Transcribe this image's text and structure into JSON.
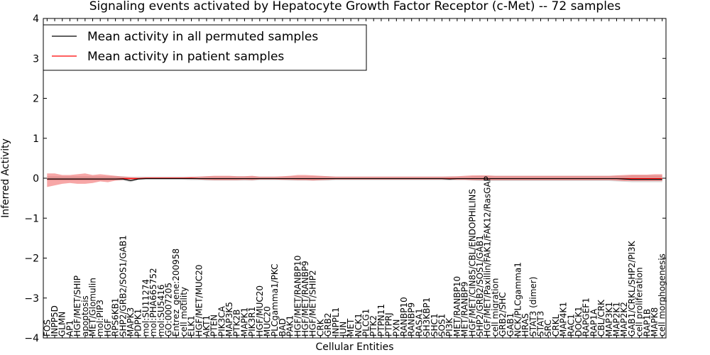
{
  "chart_data": {
    "type": "line",
    "title": "Signaling events activated by Hepatocyte Growth Factor Receptor (c-Met) -- 72 samples",
    "xlabel": "Cellular Entities",
    "ylabel": "Inferred Activity",
    "ylim": [
      -4,
      4
    ],
    "yticks": [
      -4,
      -3,
      -2,
      -1,
      0,
      1,
      2,
      3,
      4
    ],
    "ytick_labels": [
      "−4",
      "−3",
      "−2",
      "−1",
      "0",
      "1",
      "2",
      "3",
      "4"
    ],
    "legend": {
      "placement": "top-left",
      "entries": [
        {
          "label": "Mean activity in all permuted samples",
          "color": "#000000"
        },
        {
          "label": "Mean activity in patient samples",
          "color": "#ff0000"
        }
      ]
    },
    "categories": [
      "FOS",
      "INPP5D",
      "GLMN",
      "AP1",
      "HGF/MET/SHIP",
      "apoptosis",
      "MET/Glomulin",
      "mol:PIP3",
      "HGF",
      "RPS6KB1",
      "SHP2/GRB2/SOS1/GAB1",
      "MAPK3",
      "PDPK1",
      "mol:SU11274",
      "mol:PHA665752",
      "mol:SU5416",
      "GO:0007205",
      "Entrez_gene:200958",
      "cell motility",
      "ELK1",
      "HGF/MET/MUC20",
      "AKT1",
      "PTEN",
      "PIK3CA",
      "MAP3K5",
      "PTK2B",
      "MAPK1",
      "PIK3R1",
      "HGF/MUC20",
      "MUC20",
      "PLCgamma1/PKC",
      "BAD",
      "PAK1",
      "HGF/MET/RANBP10",
      "HGF/MET/RANBP9",
      "HGF/MET/SHIP2",
      "CRK",
      "GRB2",
      "INPPL1",
      "JUN",
      "MET",
      "NCK1",
      "PLCG1",
      "PTK2",
      "PTPN11",
      "PTPRJ",
      "PXN",
      "RANBP10",
      "RANBP9",
      "RASA1",
      "SH3KBP1",
      "SHC1",
      "SOS1",
      "PI3K",
      "MET/RANBP10",
      "MET/RANBP9",
      "HGF/MET/CIN85/CBL/ENDOPHILINS",
      "SHP2/GRB2/SOS1/GAB1",
      "HGF/MET/Paxillin/FAK1/FAK12/RasGAP",
      "cell migration",
      "GRB2/SHC",
      "GAB1",
      "NCK/PLCgamma1",
      "HRAS",
      "STAT3 (dimer)",
      "STAT3",
      "SRC",
      "CRKL",
      "MAP4K1",
      "RAC1",
      "DOCK1",
      "RAPGEF1",
      "RAP1A",
      "CBL/CRK",
      "MAP3K1",
      "MAP2K1",
      "MAP2K2",
      "GAB1/CRKL/SHP2/PI3K",
      "cell proliferation",
      "RAP1B",
      "MAPK8",
      "cell morphogenesis"
    ],
    "series": [
      {
        "name": "Mean activity in all permuted samples",
        "color": "#000000",
        "values": [
          -0.02,
          -0.02,
          -0.02,
          -0.02,
          -0.02,
          -0.02,
          -0.02,
          -0.02,
          -0.02,
          -0.02,
          -0.02,
          -0.06,
          -0.02,
          -0.01,
          -0.01,
          -0.01,
          -0.01,
          -0.01,
          -0.01,
          -0.01,
          -0.01,
          -0.01,
          -0.01,
          -0.01,
          -0.01,
          -0.01,
          -0.01,
          -0.01,
          -0.01,
          -0.01,
          -0.01,
          -0.01,
          -0.01,
          -0.01,
          -0.01,
          -0.01,
          -0.01,
          -0.01,
          -0.01,
          -0.01,
          -0.01,
          -0.01,
          -0.01,
          -0.01,
          -0.01,
          -0.01,
          -0.01,
          -0.01,
          -0.01,
          -0.01,
          -0.01,
          -0.01,
          -0.01,
          -0.02,
          -0.01,
          -0.01,
          -0.01,
          -0.01,
          -0.01,
          -0.01,
          -0.01,
          -0.01,
          -0.01,
          -0.01,
          -0.01,
          -0.01,
          -0.01,
          -0.01,
          -0.01,
          -0.01,
          -0.01,
          -0.01,
          -0.01,
          -0.01,
          -0.01,
          -0.01,
          -0.02,
          -0.03,
          -0.03,
          -0.03,
          -0.03,
          -0.03
        ],
        "band_low": [
          -0.06,
          -0.06,
          -0.06,
          -0.06,
          -0.06,
          -0.06,
          -0.06,
          -0.06,
          -0.06,
          -0.06,
          -0.06,
          -0.1,
          -0.04,
          -0.04,
          -0.04,
          -0.04,
          -0.04,
          -0.04,
          -0.04,
          -0.05,
          -0.05,
          -0.06,
          -0.06,
          -0.06,
          -0.06,
          -0.06,
          -0.06,
          -0.06,
          -0.05,
          -0.05,
          -0.05,
          -0.05,
          -0.06,
          -0.06,
          -0.06,
          -0.06,
          -0.06,
          -0.06,
          -0.05,
          -0.05,
          -0.05,
          -0.05,
          -0.05,
          -0.05,
          -0.05,
          -0.05,
          -0.05,
          -0.05,
          -0.05,
          -0.05,
          -0.05,
          -0.05,
          -0.05,
          -0.06,
          -0.05,
          -0.05,
          -0.06,
          -0.07,
          -0.07,
          -0.07,
          -0.07,
          -0.07,
          -0.07,
          -0.07,
          -0.07,
          -0.07,
          -0.07,
          -0.07,
          -0.07,
          -0.07,
          -0.07,
          -0.07,
          -0.07,
          -0.07,
          -0.07,
          -0.08,
          -0.09,
          -0.1,
          -0.1,
          -0.1,
          -0.1,
          -0.1
        ],
        "band_high": [
          0.05,
          0.05,
          0.05,
          0.05,
          0.05,
          0.05,
          0.05,
          0.05,
          0.05,
          0.05,
          0.05,
          0.03,
          0.04,
          0.04,
          0.04,
          0.04,
          0.04,
          0.04,
          0.04,
          0.04,
          0.04,
          0.05,
          0.05,
          0.05,
          0.05,
          0.05,
          0.05,
          0.05,
          0.04,
          0.04,
          0.04,
          0.04,
          0.05,
          0.05,
          0.05,
          0.05,
          0.05,
          0.05,
          0.04,
          0.04,
          0.04,
          0.04,
          0.04,
          0.04,
          0.04,
          0.04,
          0.04,
          0.04,
          0.04,
          0.04,
          0.04,
          0.04,
          0.04,
          0.05,
          0.04,
          0.04,
          0.05,
          0.06,
          0.06,
          0.06,
          0.06,
          0.06,
          0.06,
          0.06,
          0.06,
          0.06,
          0.06,
          0.06,
          0.06,
          0.06,
          0.06,
          0.06,
          0.06,
          0.06,
          0.06,
          0.06,
          0.06,
          0.07,
          0.07,
          0.07,
          0.07,
          0.07
        ]
      },
      {
        "name": "Mean activity in patient samples",
        "color": "#ff0000",
        "values": [
          -0.02,
          -0.02,
          -0.02,
          -0.02,
          -0.02,
          -0.02,
          -0.02,
          -0.02,
          -0.02,
          -0.02,
          -0.01,
          -0.01,
          -0.01,
          0,
          0,
          0,
          0,
          0,
          0,
          0,
          -0.01,
          -0.01,
          -0.01,
          -0.01,
          -0.01,
          -0.01,
          -0.01,
          -0.01,
          -0.01,
          -0.01,
          -0.01,
          -0.01,
          -0.01,
          -0.01,
          -0.01,
          -0.01,
          -0.01,
          -0.01,
          -0.01,
          -0.01,
          -0.01,
          -0.01,
          -0.01,
          -0.01,
          -0.01,
          -0.01,
          -0.01,
          -0.01,
          -0.01,
          -0.01,
          -0.01,
          -0.01,
          -0.01,
          -0.01,
          -0.01,
          -0.01,
          -0.01,
          -0.01,
          -0.01,
          -0.01,
          -0.01,
          -0.01,
          -0.01,
          -0.01,
          -0.01,
          -0.01,
          -0.01,
          -0.01,
          -0.01,
          -0.01,
          -0.01,
          -0.01,
          -0.01,
          -0.01,
          -0.01,
          -0.01,
          -0.01,
          -0.01,
          -0.01,
          -0.01,
          -0.01,
          -0.01
        ],
        "band_low": [
          -0.22,
          -0.18,
          -0.14,
          -0.12,
          -0.14,
          -0.14,
          -0.12,
          -0.08,
          -0.1,
          -0.06,
          -0.04,
          -0.03,
          -0.02,
          -0.01,
          -0.01,
          -0.01,
          -0.01,
          -0.01,
          -0.02,
          -0.02,
          -0.03,
          -0.04,
          -0.05,
          -0.05,
          -0.05,
          -0.05,
          -0.04,
          -0.05,
          -0.03,
          -0.03,
          -0.03,
          -0.04,
          -0.04,
          -0.05,
          -0.05,
          -0.06,
          -0.05,
          -0.04,
          -0.03,
          -0.03,
          -0.03,
          -0.03,
          -0.03,
          -0.03,
          -0.03,
          -0.03,
          -0.03,
          -0.03,
          -0.03,
          -0.03,
          -0.03,
          -0.03,
          -0.03,
          -0.03,
          -0.04,
          -0.04,
          -0.05,
          -0.05,
          -0.05,
          -0.05,
          -0.05,
          -0.05,
          -0.05,
          -0.05,
          -0.05,
          -0.05,
          -0.05,
          -0.05,
          -0.05,
          -0.05,
          -0.05,
          -0.05,
          -0.05,
          -0.05,
          -0.05,
          -0.06,
          -0.07,
          -0.07,
          -0.07,
          -0.07,
          -0.07,
          -0.07
        ],
        "band_high": [
          0.12,
          0.12,
          0.08,
          0.08,
          0.1,
          0.12,
          0.08,
          0.1,
          0.08,
          0.06,
          0.04,
          0.03,
          0.02,
          0.02,
          0.02,
          0.02,
          0.02,
          0.02,
          0.02,
          0.03,
          0.04,
          0.05,
          0.06,
          0.06,
          0.06,
          0.05,
          0.05,
          0.06,
          0.04,
          0.04,
          0.04,
          0.05,
          0.06,
          0.08,
          0.08,
          0.07,
          0.06,
          0.05,
          0.04,
          0.04,
          0.04,
          0.04,
          0.04,
          0.04,
          0.04,
          0.04,
          0.04,
          0.04,
          0.04,
          0.04,
          0.04,
          0.04,
          0.04,
          0.04,
          0.05,
          0.06,
          0.07,
          0.07,
          0.07,
          0.06,
          0.06,
          0.06,
          0.06,
          0.06,
          0.06,
          0.06,
          0.06,
          0.06,
          0.06,
          0.06,
          0.06,
          0.06,
          0.06,
          0.06,
          0.06,
          0.07,
          0.08,
          0.09,
          0.09,
          0.09,
          0.1,
          0.1
        ]
      }
    ]
  }
}
